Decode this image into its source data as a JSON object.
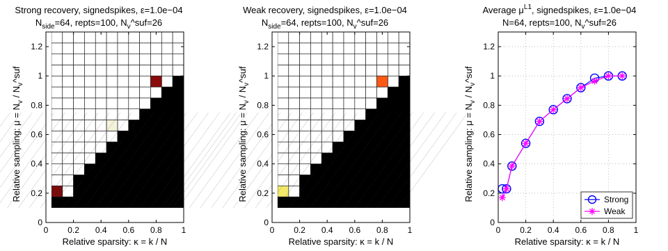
{
  "chart_data": [
    {
      "type": "heatmap",
      "title_line1": "Strong recovery,  signedspikes, ε=1.0e−04",
      "title_line2": "N_side=64,  repts=100,  N_v^suf=26",
      "xlabel": "Relative sparsity: κ = k / N",
      "ylabel": "Relative sampling: μ = N_v / N_v^suf",
      "xlim": [
        0,
        1
      ],
      "ylim": [
        0,
        1.3
      ],
      "xticks": [
        "0",
        "0.2",
        "0.4",
        "0.6",
        "0.8",
        "1"
      ],
      "yticks": [
        "0",
        "0.2",
        "0.4",
        "0.6",
        "0.8",
        "1",
        "1.2"
      ],
      "grid_x": [
        0.04,
        0.12,
        0.2,
        0.28,
        0.36,
        0.44,
        0.52,
        0.6,
        0.68,
        0.76,
        0.84,
        0.92,
        1.0
      ],
      "grid_y": [
        0.1,
        0.175,
        0.25,
        0.325,
        0.4,
        0.475,
        0.55,
        0.625,
        0.7,
        0.775,
        0.85,
        0.925,
        1.0,
        1.075,
        1.15,
        1.225,
        1.3
      ],
      "boundary_cols": [
        1,
        1,
        3,
        4,
        5,
        6,
        7,
        8,
        9,
        10,
        11,
        12
      ],
      "highlights": [
        {
          "col": 9,
          "row": 11,
          "color": "#8b0a0a"
        },
        {
          "col": 5,
          "row": 7,
          "color": "#f4f1dc"
        },
        {
          "col": 0,
          "row": 1,
          "color": "#7a0c0c"
        }
      ]
    },
    {
      "type": "heatmap",
      "title_line1": "Weak recovery,  signedspikes, ε=1.0e−04",
      "title_line2": "N_side=64,  repts=100,  N_v^suf=26",
      "xlabel": "Relative sparsity: κ = k / N",
      "ylabel": "Relative sampling: μ = N_v / N_v^suf",
      "xlim": [
        0,
        1
      ],
      "ylim": [
        0,
        1.3
      ],
      "xticks": [
        "0",
        "0.2",
        "0.4",
        "0.6",
        "0.8",
        "1"
      ],
      "yticks": [
        "0",
        "0.2",
        "0.4",
        "0.6",
        "0.8",
        "1",
        "1.2"
      ],
      "grid_x": [
        0.04,
        0.12,
        0.2,
        0.28,
        0.36,
        0.44,
        0.52,
        0.6,
        0.68,
        0.76,
        0.84,
        0.92,
        1.0
      ],
      "grid_y": [
        0.1,
        0.175,
        0.25,
        0.325,
        0.4,
        0.475,
        0.55,
        0.625,
        0.7,
        0.775,
        0.85,
        0.925,
        1.0,
        1.075,
        1.15,
        1.225,
        1.3
      ],
      "boundary_cols": [
        1,
        1,
        3,
        4,
        5,
        6,
        7,
        8,
        9,
        10,
        11,
        12
      ],
      "highlights": [
        {
          "col": 9,
          "row": 11,
          "color": "#ff5a14"
        },
        {
          "col": 0,
          "row": 1,
          "color": "#f2e96a"
        }
      ]
    },
    {
      "type": "line",
      "title_line1": "Average μ^L1,  signedspikes, ε=1.0e−04",
      "title_line2": "N=64,  repts=100,  N_v^suf=26",
      "xlabel": "Relative sparsity: κ = k / N",
      "ylabel": "Relative sampling: μ = N_v / N_v^suf",
      "xlim": [
        0,
        1
      ],
      "ylim": [
        0,
        1.3
      ],
      "xticks": [
        "0",
        "0.2",
        "0.4",
        "0.6",
        "0.8",
        "1"
      ],
      "yticks": [
        "0",
        "0.2",
        "0.4",
        "0.6",
        "0.8",
        "1",
        "1.2"
      ],
      "grid": true,
      "legend_position": "bottom-right",
      "series": [
        {
          "name": "Strong",
          "color": "#0000ff",
          "marker": "circle",
          "x": [
            0.03,
            0.06,
            0.1,
            0.2,
            0.3,
            0.4,
            0.5,
            0.6,
            0.7,
            0.8,
            0.9
          ],
          "y": [
            0.23,
            0.23,
            0.385,
            0.54,
            0.69,
            0.77,
            0.845,
            0.92,
            0.985,
            1.0,
            1.0
          ]
        },
        {
          "name": "Weak",
          "color": "#ff00ff",
          "marker": "asterisk",
          "x": [
            0.03,
            0.06,
            0.1,
            0.2,
            0.3,
            0.4,
            0.5,
            0.6,
            0.7,
            0.8,
            0.9
          ],
          "y": [
            0.17,
            0.23,
            0.385,
            0.54,
            0.69,
            0.77,
            0.845,
            0.92,
            0.965,
            1.0,
            1.0
          ]
        }
      ]
    }
  ]
}
